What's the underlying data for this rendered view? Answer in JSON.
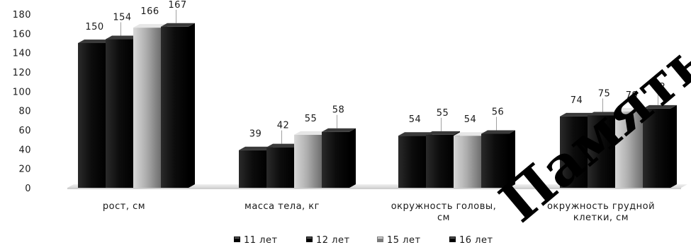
{
  "chart_data": {
    "type": "bar",
    "title": "",
    "xlabel": "",
    "ylabel": "",
    "ylim": [
      0,
      180
    ],
    "yticks": [
      0,
      20,
      40,
      60,
      80,
      100,
      120,
      140,
      160,
      180
    ],
    "grid": false,
    "legend_position": "bottom",
    "categories": [
      [
        "рост, см"
      ],
      [
        "масса тела, кг"
      ],
      [
        "окружность головы,",
        "см"
      ],
      [
        "окружность грудной",
        "клетки, см"
      ]
    ],
    "series": [
      {
        "name": "11 лет",
        "values": [
          150,
          39,
          54,
          74
        ],
        "color": "#141414"
      },
      {
        "name": "12 лет",
        "values": [
          154,
          42,
          55,
          75
        ],
        "color": "#0a0a0a"
      },
      {
        "name": "15 лет",
        "values": [
          166,
          55,
          54,
          79
        ],
        "color": "#a8a8a8"
      },
      {
        "name": "16 лет",
        "values": [
          167,
          58,
          56,
          82
        ],
        "color": "#050505"
      }
    ]
  },
  "watermark": "Память"
}
